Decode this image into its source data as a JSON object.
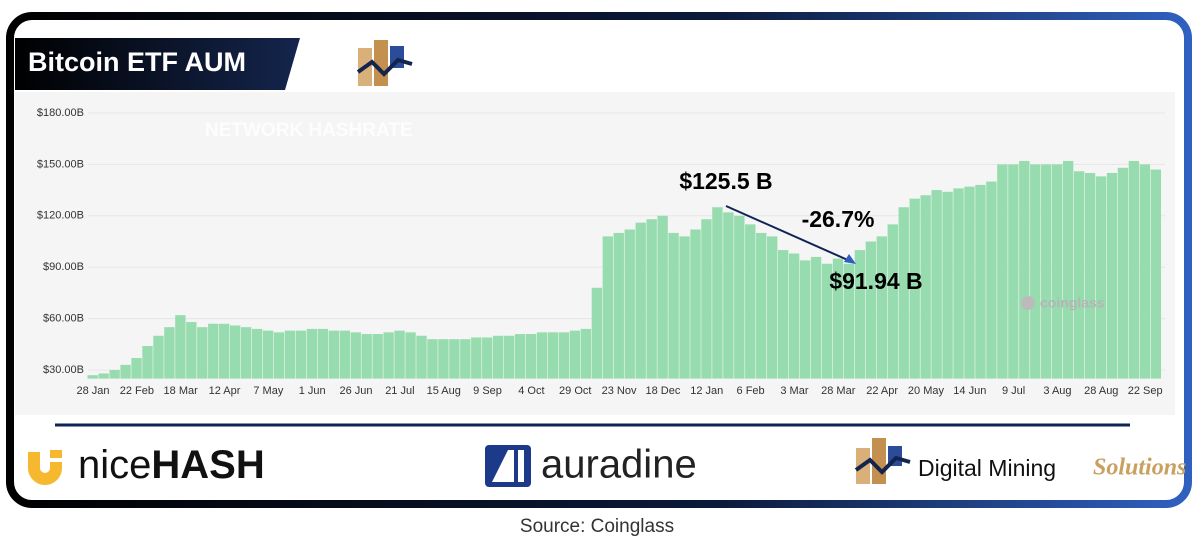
{
  "header": {
    "title": "Bitcoin ETF AUM"
  },
  "chart_data": {
    "type": "bar",
    "watermarks": [
      "NETWORK HASHRATE",
      "coinglass"
    ],
    "annotations": [
      "$125.5 B",
      "-26.7%",
      "$91.94 B"
    ],
    "categories": [
      "28 Jan",
      null,
      null,
      null,
      "22 Feb",
      null,
      null,
      null,
      "18 Mar",
      null,
      null,
      null,
      "12 Apr",
      null,
      null,
      null,
      "7 May",
      null,
      null,
      null,
      "1 Jun",
      null,
      null,
      null,
      "26 Jun",
      null,
      null,
      null,
      "21 Jul",
      null,
      null,
      null,
      "15 Aug",
      null,
      null,
      null,
      "9 Sep",
      null,
      null,
      null,
      "4 Oct",
      null,
      null,
      null,
      "29 Oct",
      null,
      null,
      null,
      "23 Nov",
      null,
      null,
      null,
      "18 Dec",
      null,
      null,
      null,
      "12 Jan",
      null,
      null,
      null,
      "6 Feb",
      null,
      null,
      null,
      "3 Mar",
      null,
      null,
      null,
      "28 Mar",
      null,
      null,
      null,
      "22 Apr",
      null,
      null,
      null,
      "20 May",
      null,
      null,
      null,
      "14 Jun",
      null,
      null,
      null,
      "9 Jul",
      null,
      null,
      null,
      "3 Aug",
      null,
      null,
      null,
      "28 Aug",
      null,
      null,
      null,
      "22 Sep",
      null
    ],
    "values": [
      27,
      28,
      30,
      33,
      37,
      44,
      50,
      55,
      62,
      58,
      55,
      57,
      57,
      56,
      55,
      54,
      53,
      52,
      53,
      53,
      54,
      54,
      53,
      53,
      52,
      51,
      51,
      52,
      53,
      52,
      50,
      48,
      48,
      48,
      48,
      49,
      49,
      50,
      50,
      51,
      51,
      52,
      52,
      52,
      53,
      54,
      78,
      108,
      110,
      112,
      116,
      118,
      120,
      110,
      108,
      112,
      118,
      125,
      122,
      120,
      115,
      110,
      108,
      100,
      98,
      94,
      96,
      92,
      95,
      92,
      100,
      105,
      108,
      115,
      125,
      130,
      132,
      135,
      134,
      136,
      137,
      138,
      140,
      150,
      150,
      152,
      150,
      150,
      150,
      152,
      146,
      145,
      143,
      145,
      148,
      152,
      150,
      147
    ],
    "color": "#97dcae",
    "ylim": [
      25,
      185
    ],
    "yticks": [
      {
        "value": 30,
        "label": "$30.00B"
      },
      {
        "value": 60,
        "label": "$60.00B"
      },
      {
        "value": 90,
        "label": "$90.00B"
      },
      {
        "value": 120,
        "label": "$120.00B"
      },
      {
        "value": 150,
        "label": "$150.00B"
      },
      {
        "value": 180,
        "label": "$180.00B"
      }
    ]
  },
  "logos": {
    "nicehash": [
      "nice",
      "HASH"
    ],
    "auradine": "auradine",
    "dms": [
      "Digital Mining",
      "Solutions"
    ]
  },
  "source": "Source: Coinglass"
}
